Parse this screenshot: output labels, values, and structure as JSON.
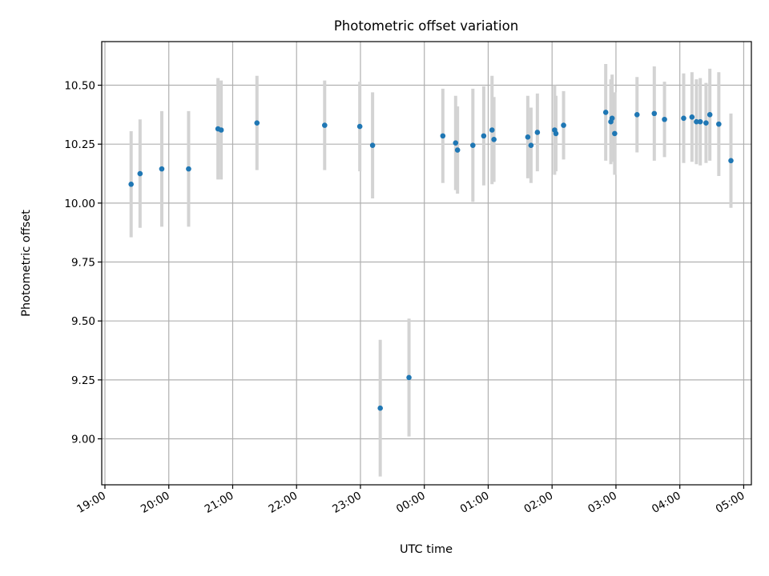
{
  "chart_data": {
    "type": "scatter",
    "title": "Photometric offset variation",
    "xlabel": "UTC time",
    "ylabel": "Photometric offset",
    "xlim": [
      -0.05,
      10.12
    ],
    "ylim": [
      8.805,
      10.685
    ],
    "grid": true,
    "legend": "none",
    "x_note": "x values are hours elapsed since 19:00 UTC",
    "xticks": [
      {
        "value": 0,
        "label": "19:00"
      },
      {
        "value": 1,
        "label": "20:00"
      },
      {
        "value": 2,
        "label": "21:00"
      },
      {
        "value": 3,
        "label": "22:00"
      },
      {
        "value": 4,
        "label": "23:00"
      },
      {
        "value": 5,
        "label": "00:00"
      },
      {
        "value": 6,
        "label": "01:00"
      },
      {
        "value": 7,
        "label": "02:00"
      },
      {
        "value": 8,
        "label": "03:00"
      },
      {
        "value": 9,
        "label": "04:00"
      },
      {
        "value": 10,
        "label": "05:00"
      }
    ],
    "yticks": [
      {
        "value": 9.0,
        "label": "9.00"
      },
      {
        "value": 9.25,
        "label": "9.25"
      },
      {
        "value": 9.5,
        "label": "9.50"
      },
      {
        "value": 9.75,
        "label": "9.75"
      },
      {
        "value": 10.0,
        "label": "10.00"
      },
      {
        "value": 10.25,
        "label": "10.25"
      },
      {
        "value": 10.5,
        "label": "10.50"
      }
    ],
    "colors": {
      "point": "#1f77b4",
      "errorbar": "#d3d3d3"
    },
    "points": [
      {
        "x": 0.41,
        "y": 10.08,
        "err": 0.225
      },
      {
        "x": 0.55,
        "y": 10.125,
        "err": 0.23
      },
      {
        "x": 0.89,
        "y": 10.145,
        "err": 0.245
      },
      {
        "x": 1.31,
        "y": 10.145,
        "err": 0.245
      },
      {
        "x": 1.77,
        "y": 10.315,
        "err": 0.215
      },
      {
        "x": 1.82,
        "y": 10.31,
        "err": 0.21
      },
      {
        "x": 2.38,
        "y": 10.34,
        "err": 0.2
      },
      {
        "x": 3.44,
        "y": 10.33,
        "err": 0.19
      },
      {
        "x": 3.99,
        "y": 10.325,
        "err": 0.19
      },
      {
        "x": 4.19,
        "y": 10.245,
        "err": 0.225
      },
      {
        "x": 4.31,
        "y": 9.13,
        "err": 0.29
      },
      {
        "x": 4.76,
        "y": 9.26,
        "err": 0.25
      },
      {
        "x": 5.29,
        "y": 10.285,
        "err": 0.2
      },
      {
        "x": 5.49,
        "y": 10.255,
        "err": 0.2
      },
      {
        "x": 5.52,
        "y": 10.225,
        "err": 0.185
      },
      {
        "x": 5.76,
        "y": 10.245,
        "err": 0.24
      },
      {
        "x": 5.93,
        "y": 10.285,
        "err": 0.21
      },
      {
        "x": 6.06,
        "y": 10.31,
        "err": 0.23
      },
      {
        "x": 6.09,
        "y": 10.27,
        "err": 0.18
      },
      {
        "x": 6.62,
        "y": 10.28,
        "err": 0.175
      },
      {
        "x": 6.67,
        "y": 10.245,
        "err": 0.16
      },
      {
        "x": 6.77,
        "y": 10.3,
        "err": 0.165
      },
      {
        "x": 7.04,
        "y": 10.31,
        "err": 0.19
      },
      {
        "x": 7.06,
        "y": 10.295,
        "err": 0.16
      },
      {
        "x": 7.18,
        "y": 10.33,
        "err": 0.145
      },
      {
        "x": 7.84,
        "y": 10.385,
        "err": 0.205
      },
      {
        "x": 7.92,
        "y": 10.345,
        "err": 0.18
      },
      {
        "x": 7.94,
        "y": 10.36,
        "err": 0.185
      },
      {
        "x": 7.98,
        "y": 10.295,
        "err": 0.175
      },
      {
        "x": 8.33,
        "y": 10.375,
        "err": 0.16
      },
      {
        "x": 8.6,
        "y": 10.38,
        "err": 0.2
      },
      {
        "x": 8.76,
        "y": 10.355,
        "err": 0.16
      },
      {
        "x": 9.06,
        "y": 10.36,
        "err": 0.19
      },
      {
        "x": 9.19,
        "y": 10.365,
        "err": 0.19
      },
      {
        "x": 9.26,
        "y": 10.345,
        "err": 0.18
      },
      {
        "x": 9.32,
        "y": 10.345,
        "err": 0.185
      },
      {
        "x": 9.41,
        "y": 10.34,
        "err": 0.17
      },
      {
        "x": 9.47,
        "y": 10.375,
        "err": 0.195
      },
      {
        "x": 9.61,
        "y": 10.335,
        "err": 0.22
      },
      {
        "x": 9.8,
        "y": 10.18,
        "err": 0.2
      }
    ]
  }
}
